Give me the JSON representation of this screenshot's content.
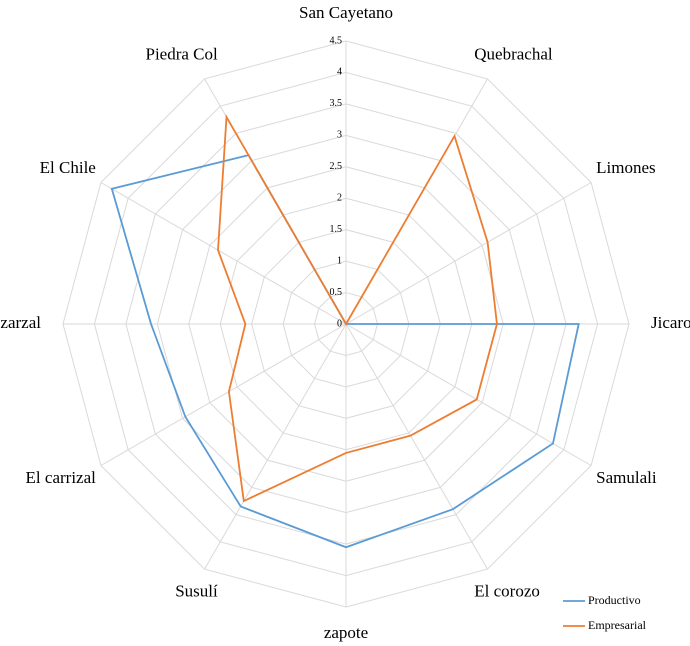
{
  "chart_data": {
    "type": "radar",
    "categories": [
      "San Cayetano",
      "Quebrachal",
      "Limones",
      "Jicaro",
      "Samulali",
      "El corozo",
      "zapote",
      "Susulí",
      "El carrizal",
      "zarzal",
      "El Chile",
      "Piedra Col"
    ],
    "series": [
      {
        "name": "Productivo",
        "color": "#5b9bd5",
        "values": [
          0,
          0,
          0,
          3.7,
          3.8,
          3.4,
          3.55,
          3.35,
          2.95,
          3.1,
          4.3,
          3.1
        ]
      },
      {
        "name": "Empresarial",
        "color": "#ed7d31",
        "values": [
          0,
          3.45,
          2.6,
          2.4,
          2.4,
          2.05,
          2.05,
          3.25,
          2.15,
          1.6,
          2.35,
          3.8
        ]
      }
    ],
    "ylim": [
      0,
      4.5
    ],
    "yticks": [
      0,
      0.5,
      1,
      1.5,
      2,
      2.5,
      3,
      3.5,
      4,
      4.5
    ],
    "grid": true,
    "legend": "bottom-right"
  }
}
